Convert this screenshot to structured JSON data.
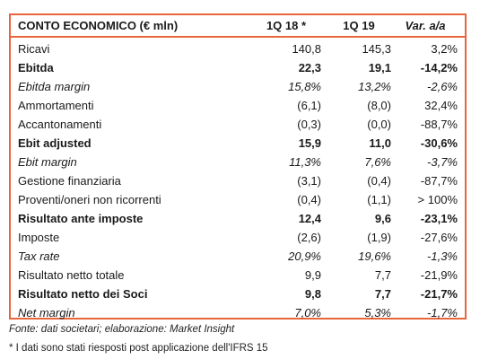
{
  "table": {
    "header": {
      "label": "CONTO ECONOMICO (€ mln)",
      "col1": "1Q 18 *",
      "col2": "1Q 19",
      "col3": "Var. a/a"
    },
    "rows": [
      {
        "label": "Ricavi",
        "v1": "140,8",
        "v2": "145,3",
        "v3": "3,2%",
        "style": "normal"
      },
      {
        "label": "Ebitda",
        "v1": "22,3",
        "v2": "19,1",
        "v3": "-14,2%",
        "style": "bold"
      },
      {
        "label": "Ebitda margin",
        "v1": "15,8%",
        "v2": "13,2%",
        "v3": "-2,6%",
        "style": "italic"
      },
      {
        "label": "Ammortamenti",
        "v1": "(6,1)",
        "v2": "(8,0)",
        "v3": "32,4%",
        "style": "normal"
      },
      {
        "label": "Accantonamenti",
        "v1": "(0,3)",
        "v2": "(0,0)",
        "v3": "-88,7%",
        "style": "normal"
      },
      {
        "label": "Ebit adjusted",
        "v1": "15,9",
        "v2": "11,0",
        "v3": "-30,6%",
        "style": "bold"
      },
      {
        "label": "Ebit margin",
        "v1": "11,3%",
        "v2": "7,6%",
        "v3": "-3,7%",
        "style": "italic"
      },
      {
        "label": "Gestione finanziaria",
        "v1": "(3,1)",
        "v2": "(0,4)",
        "v3": "-87,7%",
        "style": "normal"
      },
      {
        "label": "Proventi/oneri non ricorrenti",
        "v1": "(0,4)",
        "v2": "(1,1)",
        "v3": "> 100%",
        "style": "normal"
      },
      {
        "label": "Risultato ante imposte",
        "v1": "12,4",
        "v2": "9,6",
        "v3": "-23,1%",
        "style": "bold"
      },
      {
        "label": "Imposte",
        "v1": "(2,6)",
        "v2": "(1,9)",
        "v3": "-27,6%",
        "style": "normal"
      },
      {
        "label": "Tax rate",
        "v1": "20,9%",
        "v2": "19,6%",
        "v3": "-1,3%",
        "style": "italic"
      },
      {
        "label": "Risultato netto totale",
        "v1": "9,9",
        "v2": "7,7",
        "v3": "-21,9%",
        "style": "normal"
      },
      {
        "label": "Risultato netto dei Soci",
        "v1": "9,8",
        "v2": "7,7",
        "v3": "-21,7%",
        "style": "bold"
      },
      {
        "label": "Net margin",
        "v1": "7,0%",
        "v2": "5,3%",
        "v3": "-1,7%",
        "style": "italic"
      }
    ]
  },
  "footer": {
    "source": "Fonte: dati societari; elaborazione: Market Insight",
    "note": "* I dati sono stati riesposti post applicazione dell'IFRS 15"
  },
  "colors": {
    "accent": "#e8663d"
  }
}
